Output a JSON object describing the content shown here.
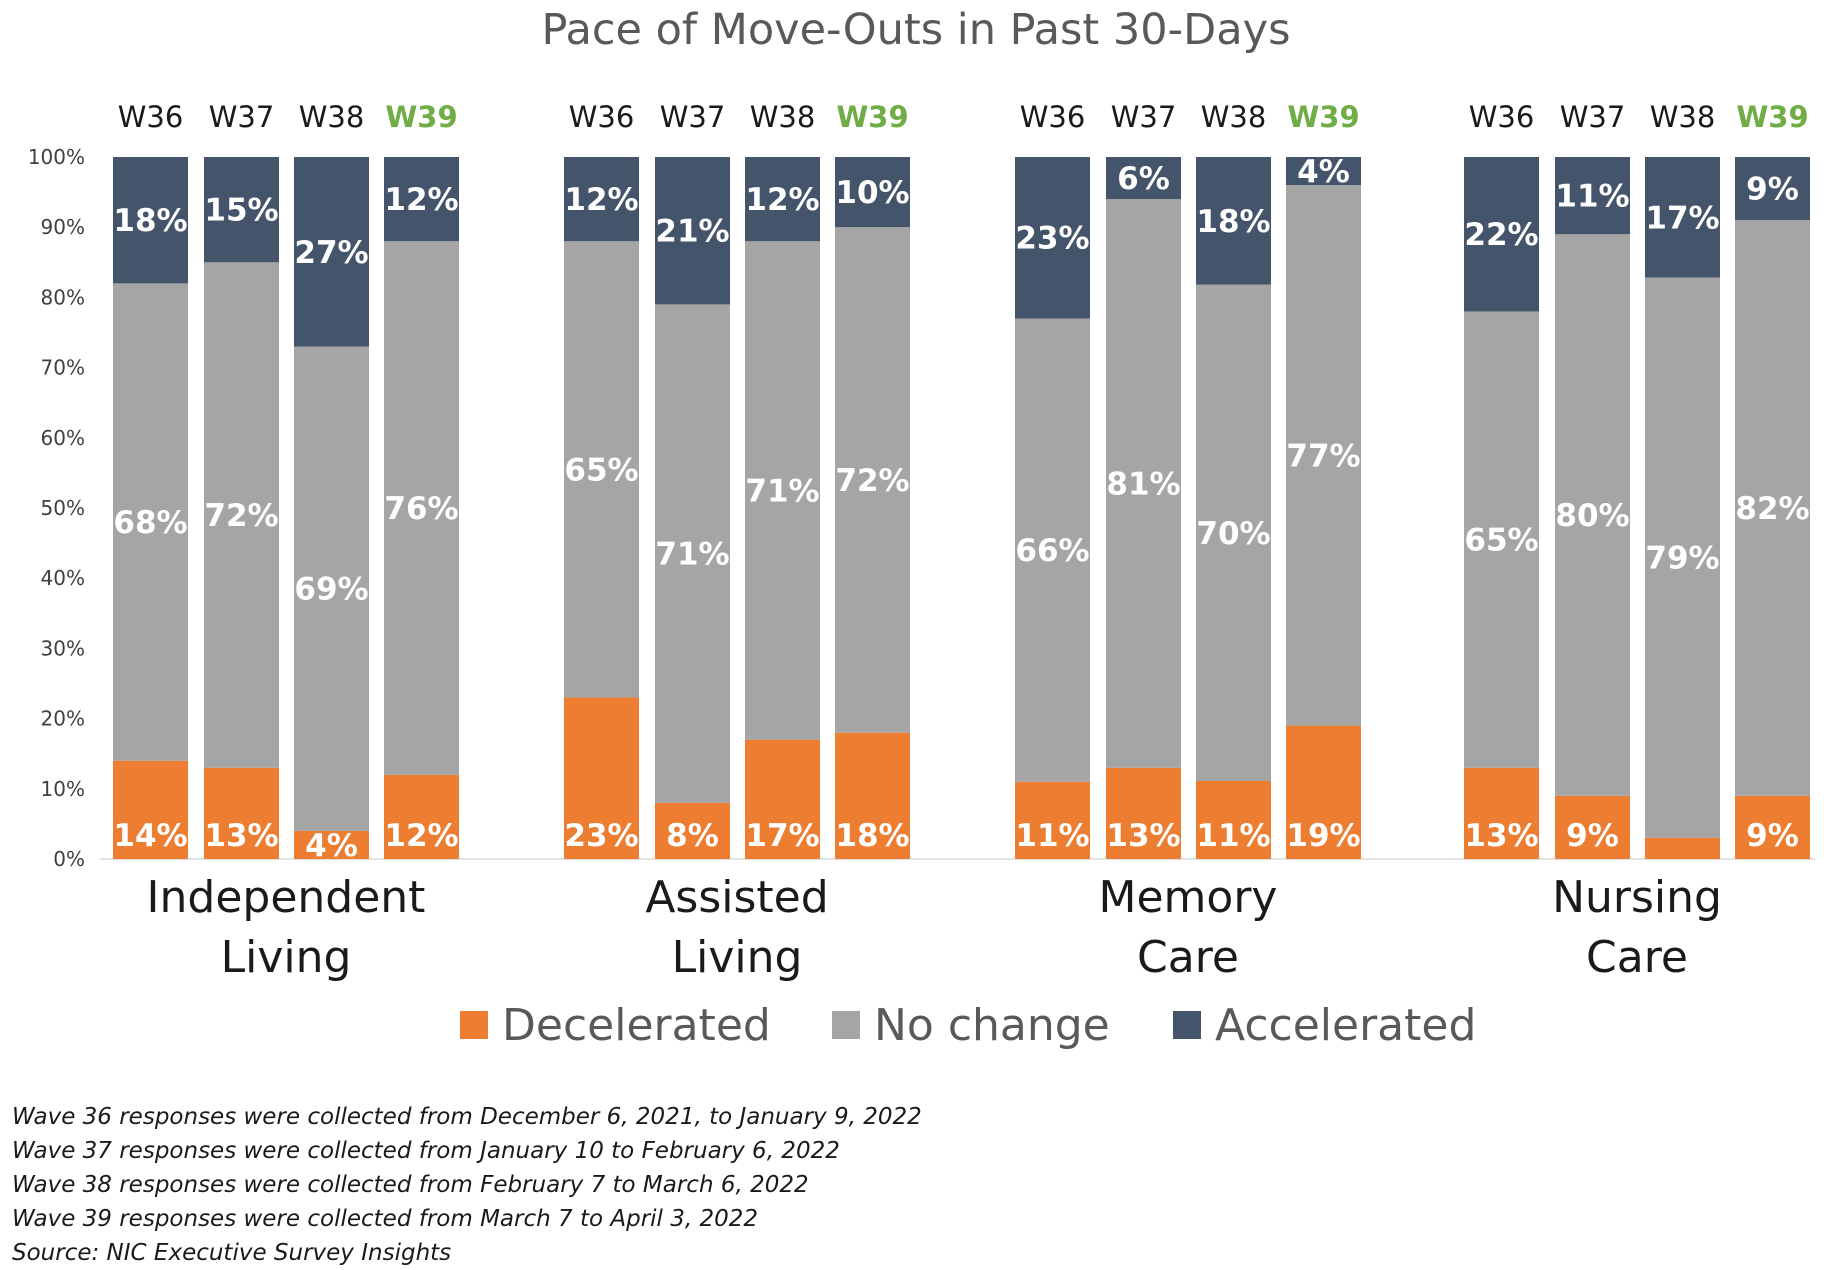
{
  "chart_data": {
    "type": "bar",
    "stacked": true,
    "normalized": true,
    "title": "Pace of Move-Outs in Past 30-Days",
    "yticks": [
      "0%",
      "10%",
      "20%",
      "30%",
      "40%",
      "50%",
      "60%",
      "70%",
      "80%",
      "90%",
      "100%"
    ],
    "ylim": [
      0,
      100
    ],
    "grid": false,
    "legend_position": "bottom",
    "highlighted_wave": "W39",
    "colors": {
      "Decelerated": "#ED7D31",
      "No change": "#A5A5A5",
      "Accelerated": "#44546A",
      "highlight_wave": "#70AD47"
    },
    "series_names": [
      "Decelerated",
      "No change",
      "Accelerated"
    ],
    "groups": [
      {
        "label_lines": [
          "Independent",
          "Living"
        ],
        "bars": [
          {
            "wave": "W36",
            "values": [
              14,
              68,
              18
            ],
            "labels": [
              "14%",
              "68%",
              "18%"
            ]
          },
          {
            "wave": "W37",
            "values": [
              13,
              72,
              15
            ],
            "labels": [
              "13%",
              "72%",
              "15%"
            ]
          },
          {
            "wave": "W38",
            "values": [
              4,
              69,
              27
            ],
            "labels": [
              "4%",
              "69%",
              "27%"
            ]
          },
          {
            "wave": "W39",
            "values": [
              12,
              76,
              12
            ],
            "labels": [
              "12%",
              "76%",
              "12%"
            ]
          }
        ]
      },
      {
        "label_lines": [
          "Assisted",
          "Living"
        ],
        "bars": [
          {
            "wave": "W36",
            "values": [
              23,
              65,
              12
            ],
            "labels": [
              "23%",
              "65%",
              "12%"
            ]
          },
          {
            "wave": "W37",
            "values": [
              8,
              71,
              21
            ],
            "labels": [
              "8%",
              "71%",
              "21%"
            ]
          },
          {
            "wave": "W38",
            "values": [
              17,
              71,
              12
            ],
            "labels": [
              "17%",
              "71%",
              "12%"
            ]
          },
          {
            "wave": "W39",
            "values": [
              18,
              72,
              10
            ],
            "labels": [
              "18%",
              "72%",
              "10%"
            ]
          }
        ]
      },
      {
        "label_lines": [
          "Memory",
          "Care"
        ],
        "bars": [
          {
            "wave": "W36",
            "values": [
              11,
              66,
              23
            ],
            "labels": [
              "11%",
              "66%",
              "23%"
            ]
          },
          {
            "wave": "W37",
            "values": [
              13,
              81,
              6
            ],
            "labels": [
              "13%",
              "81%",
              "6%"
            ]
          },
          {
            "wave": "W38",
            "values": [
              11,
              70,
              18
            ],
            "labels": [
              "11%",
              "70%",
              "18%"
            ]
          },
          {
            "wave": "W39",
            "values": [
              19,
              77,
              4
            ],
            "labels": [
              "19%",
              "77%",
              "4%"
            ]
          }
        ]
      },
      {
        "label_lines": [
          "Nursing",
          "Care"
        ],
        "bars": [
          {
            "wave": "W36",
            "values": [
              13,
              65,
              22
            ],
            "labels": [
              "13%",
              "65%",
              "22%"
            ]
          },
          {
            "wave": "W37",
            "values": [
              9,
              80,
              11
            ],
            "labels": [
              "9%",
              "80%",
              "11%"
            ]
          },
          {
            "wave": "W38",
            "values": [
              3,
              79,
              17
            ],
            "labels": [
              "",
              "79%",
              "17%"
            ]
          },
          {
            "wave": "W39",
            "values": [
              9,
              82,
              9
            ],
            "labels": [
              "9%",
              "82%",
              "9%"
            ]
          }
        ]
      }
    ]
  },
  "footnotes": [
    "Wave 36 responses were collected from December 6, 2021, to January 9, 2022",
    "Wave 37 responses were collected from January 10 to February 6, 2022",
    "Wave 38 responses were collected from February 7 to March 6, 2022",
    "Wave 39 responses were collected from March 7 to April 3, 2022",
    "Source: NIC Executive Survey Insights"
  ]
}
